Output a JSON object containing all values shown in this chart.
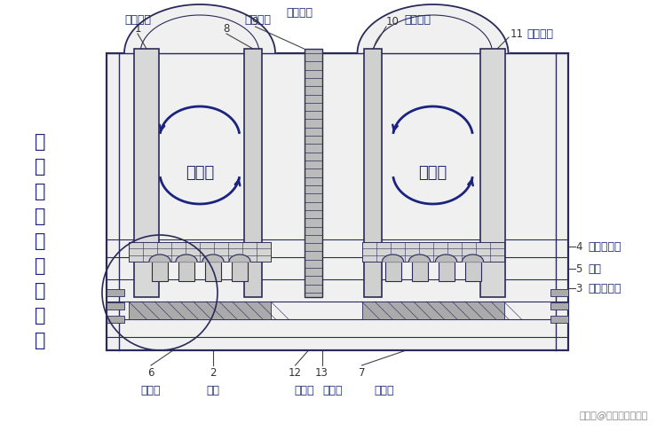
{
  "bg_color": "#ffffff",
  "line_color": "#2a2a5a",
  "label_color": "#1a2a7a",
  "dark_blue": "#1a237e",
  "watermark": "搜狐号@搜狐黑点黄冈站",
  "title_chars": [
    "四",
    "玻",
    "两",
    "腔",
    "窗",
    "组",
    "构",
    "部",
    "件"
  ],
  "figsize": [
    7.4,
    4.86
  ],
  "dpi": 100
}
